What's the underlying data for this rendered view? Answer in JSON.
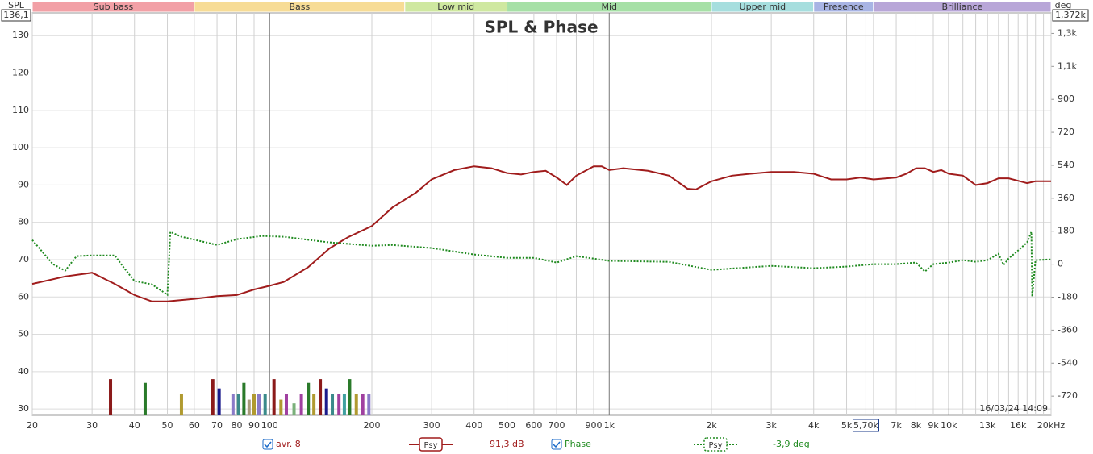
{
  "chart_data": {
    "type": "line",
    "title": "SPL & Phase",
    "y_label": "SPL",
    "y2_label": "deg",
    "y_top_label": "136,1",
    "y2_top_label": "1,372k",
    "log_x": true,
    "grid": true,
    "xlim": [
      20,
      20000
    ],
    "xticks": [
      20,
      30,
      40,
      50,
      60,
      70,
      80,
      90,
      100,
      200,
      300,
      400,
      500,
      600,
      700,
      {
        "value": 800,
        "label": null
      },
      900,
      {
        "value": 1000,
        "label": "1k"
      },
      {
        "value": 2000,
        "label": "2k"
      },
      {
        "value": 3000,
        "label": "3k"
      },
      {
        "value": 4000,
        "label": "4k"
      },
      {
        "value": 5000,
        "label": "5k"
      },
      {
        "value": 6000,
        "label": null
      },
      {
        "value": 7000,
        "label": "7k"
      },
      {
        "value": 8000,
        "label": "8k"
      },
      {
        "value": 9000,
        "label": "9k"
      },
      {
        "value": 10000,
        "label": "10k"
      },
      {
        "value": 11000,
        "label": null
      },
      {
        "value": 12000,
        "label": null
      },
      {
        "value": 13000,
        "label": "13k"
      },
      {
        "value": 14000,
        "label": null
      },
      {
        "value": 15000,
        "label": null
      },
      {
        "value": 16000,
        "label": "16k"
      },
      {
        "value": 17000,
        "label": null
      },
      {
        "value": 18000,
        "label": null
      },
      {
        "value": 19000,
        "label": null
      },
      {
        "value": 20000,
        "label": "20kHz"
      }
    ],
    "ylim": [
      28.3,
      136.1
    ],
    "yticks": [
      30,
      40,
      50,
      60,
      70,
      80,
      90,
      100,
      110,
      120,
      130
    ],
    "y2lim": [
      -825,
      1372
    ],
    "y2ticks": [
      -720,
      -540,
      -360,
      -180,
      0,
      180,
      360,
      540,
      720,
      900,
      {
        "value": 1080,
        "label": "1,1k"
      },
      {
        "value": 1260,
        "label": "1,3k"
      }
    ],
    "bands": [
      {
        "name": "Sub bass",
        "from": 20,
        "to": 60,
        "color": "#f2a0a6"
      },
      {
        "name": "Bass",
        "from": 60,
        "to": 250,
        "color": "#f7dc96"
      },
      {
        "name": "Low mid",
        "from": 250,
        "to": 500,
        "color": "#cfe8a0"
      },
      {
        "name": "Mid",
        "from": 500,
        "to": 2000,
        "color": "#a6e0a6"
      },
      {
        "name": "Upper mid",
        "from": 2000,
        "to": 4000,
        "color": "#a6dede"
      },
      {
        "name": "Presence",
        "from": 4000,
        "to": 6000,
        "color": "#a8b4e4"
      },
      {
        "name": "Brilliance",
        "from": 6000,
        "to": 20000,
        "color": "#b8a6d8"
      }
    ],
    "series": [
      {
        "name": "Psy",
        "color": "#a01c1c",
        "readout": "91,3 dB",
        "x": [
          20,
          25,
          30,
          35,
          40,
          45,
          50,
          60,
          70,
          80,
          90,
          100,
          110,
          130,
          150,
          170,
          200,
          230,
          270,
          300,
          350,
          400,
          450,
          500,
          550,
          600,
          650,
          700,
          750,
          800,
          900,
          950,
          1000,
          1100,
          1300,
          1500,
          1700,
          1800,
          2000,
          2300,
          2600,
          3000,
          3500,
          4000,
          4500,
          5000,
          5500,
          6000,
          7000,
          7500,
          8000,
          8500,
          9000,
          9500,
          10000,
          11000,
          12000,
          13000,
          14000,
          15000,
          17000,
          18000,
          20000
        ],
        "values": [
          63.5,
          65.5,
          66.5,
          63.5,
          60.5,
          58.8,
          58.8,
          59.5,
          60.2,
          60.5,
          62,
          63,
          64,
          68,
          73,
          76,
          79,
          84,
          88,
          91.5,
          94,
          95,
          94.5,
          93.2,
          92.8,
          93.5,
          93.8,
          92,
          90,
          92.5,
          95,
          95,
          94,
          94.5,
          93.8,
          92.5,
          89,
          88.8,
          91,
          92.5,
          93,
          93.5,
          93.5,
          93,
          91.5,
          91.5,
          92,
          91.5,
          92,
          93,
          94.5,
          94.5,
          93.5,
          94,
          93,
          92.5,
          90,
          90.5,
          91.8,
          91.8,
          90.5,
          91,
          91
        ]
      },
      {
        "name": "Psy",
        "color": "#1f8a1f",
        "axis": "y2",
        "readout": "-3,9 deg",
        "x": [
          20,
          23,
          25,
          27,
          30,
          35,
          37,
          40,
          45,
          50,
          51,
          55,
          70,
          80,
          95,
          110,
          150,
          200,
          230,
          300,
          400,
          500,
          600,
          700,
          800,
          1000,
          1500,
          2000,
          3000,
          4000,
          5000,
          6000,
          7000,
          8000,
          8500,
          9000,
          10000,
          11000,
          12000,
          13000,
          14000,
          14500,
          15000,
          16000,
          17000,
          17500,
          17600,
          18000,
          20000
        ],
        "values": [
          132,
          0,
          -35,
          44,
          48,
          48,
          -13,
          -92,
          -110,
          -167,
          176,
          150,
          105,
          136,
          154,
          150,
          119,
          101,
          105,
          88,
          53,
          35,
          35,
          9,
          44,
          18,
          13,
          -31,
          -9,
          -22,
          -13,
          0,
          0,
          9,
          -40,
          0,
          9,
          22,
          13,
          22,
          57,
          -4,
          31,
          75,
          119,
          176,
          -176,
          22,
          26
        ]
      }
    ],
    "bars": {
      "x": [
        34,
        43,
        55,
        68,
        71,
        78,
        81,
        84,
        87,
        90,
        93,
        97,
        103,
        108,
        112,
        118,
        124,
        130,
        135,
        141,
        147,
        153,
        160,
        166,
        172,
        180,
        188,
        196
      ],
      "values": [
        38,
        37,
        34,
        38,
        35.5,
        34,
        34,
        37,
        32.5,
        34,
        34,
        34,
        38,
        32.5,
        34,
        31.5,
        34,
        37,
        34,
        38,
        35.5,
        34,
        34,
        34,
        38,
        34,
        34,
        34
      ],
      "colors": [
        "#8b1a1a",
        "#2a7a2a",
        "#b09a30",
        "#8b1a1a",
        "#1a1a8b",
        "#8a7ac8",
        "#3a8a8a",
        "#2a7a2a",
        "#a89a7a",
        "#b09a30",
        "#8a7ac8",
        "#3a8a8a",
        "#8b1a1a",
        "#b09a30",
        "#a040a0",
        "#7ab07a",
        "#a040a0",
        "#2a7a2a",
        "#b09a30",
        "#8b1a1a",
        "#1a1a8b",
        "#3a8a8a",
        "#a040a0",
        "#40a0a0",
        "#2a7a2a",
        "#b09a30",
        "#a040a0",
        "#8a7ac8"
      ]
    },
    "legend_labels": [
      "avr. 8",
      "Phase"
    ],
    "cursor": {
      "value": 5700,
      "label": "5,70k"
    },
    "timestamp": "16/03/24 14:09"
  }
}
